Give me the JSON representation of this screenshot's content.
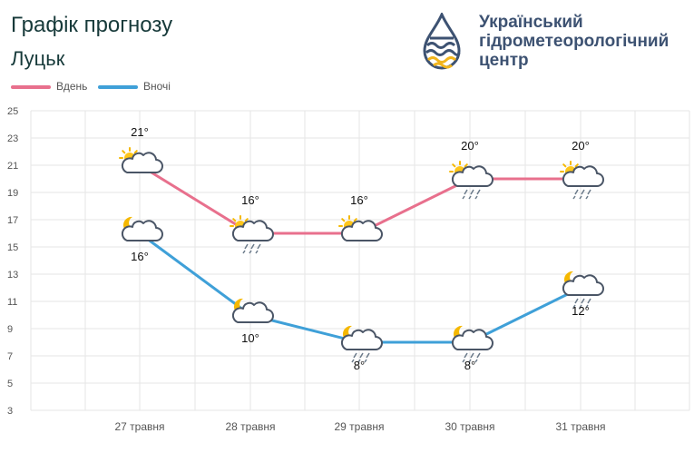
{
  "header": {
    "title": "Графік прогнозу",
    "city": "Луцьк"
  },
  "logo": {
    "line1": "Український",
    "line2": "гідрометеорологічний",
    "line3": "центр",
    "icon": "drop-logo-icon"
  },
  "colors": {
    "day": "#e8708d",
    "night": "#3fa0d8",
    "grid": "#e6e6e6",
    "text": "#555555"
  },
  "chart_data": {
    "type": "line",
    "categories": [
      "27 травня",
      "28 травня",
      "29 травня",
      "30 травня",
      "31 травня"
    ],
    "series": [
      {
        "name": "Вдень",
        "values": [
          21,
          16,
          16,
          20,
          20
        ],
        "labels": [
          "21°",
          "16°",
          "16°",
          "20°",
          "20°"
        ],
        "icons": [
          "sun-cloud-icon",
          "sun-cloud-rain-icon",
          "sun-cloud-icon",
          "sun-cloud-rain-icon",
          "sun-cloud-rain-icon"
        ]
      },
      {
        "name": "Вночі",
        "values": [
          16,
          10,
          8,
          8,
          12
        ],
        "labels": [
          "16°",
          "10°",
          "8°",
          "8°",
          "12°"
        ],
        "icons": [
          "moon-cloud-icon",
          "moon-cloud-icon",
          "moon-cloud-rain-icon",
          "moon-cloud-rain-icon",
          "moon-cloud-rain-icon"
        ]
      }
    ],
    "y_ticks": [
      "25",
      "23",
      "21",
      "19",
      "17",
      "15",
      "13",
      "11",
      "9",
      "7",
      "5",
      "3"
    ],
    "ylim": [
      3,
      25
    ],
    "grid": true,
    "legend": "top-left"
  }
}
